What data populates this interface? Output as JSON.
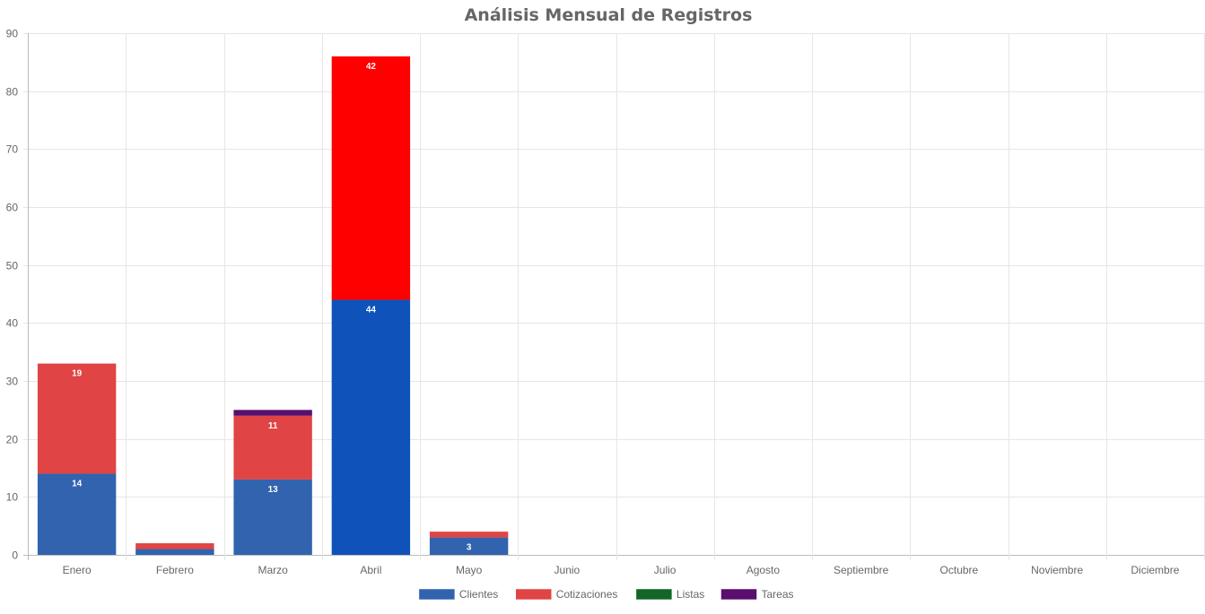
{
  "chart_data": {
    "type": "bar",
    "stacked": true,
    "title": "Análisis Mensual de Registros",
    "xlabel": "",
    "ylabel": "",
    "ylim": [
      0,
      90
    ],
    "yticks": [
      0,
      10,
      20,
      30,
      40,
      50,
      60,
      70,
      80,
      90
    ],
    "grid": true,
    "legend_position": "bottom",
    "categories": [
      "Enero",
      "Febrero",
      "Marzo",
      "Abril",
      "Mayo",
      "Junio",
      "Julio",
      "Agosto",
      "Septiembre",
      "Octubre",
      "Noviembre",
      "Diciembre"
    ],
    "series": [
      {
        "name": "Clientes",
        "color": "#3163af",
        "values": [
          14,
          1,
          13,
          44,
          3,
          0,
          0,
          0,
          0,
          0,
          0,
          0
        ],
        "point_colors": {
          "3": "#0f52b9"
        }
      },
      {
        "name": "Cotizaciones",
        "color": "#e04444",
        "values": [
          19,
          1,
          11,
          42,
          1,
          0,
          0,
          0,
          0,
          0,
          0,
          0
        ],
        "point_colors": {
          "3": "#ff0000"
        }
      },
      {
        "name": "Listas",
        "color": "#136528",
        "values": [
          0,
          0,
          0,
          0,
          0,
          0,
          0,
          0,
          0,
          0,
          0,
          0
        ]
      },
      {
        "name": "Tareas",
        "color": "#5a0e6d",
        "values": [
          0,
          0,
          1,
          0,
          0,
          0,
          0,
          0,
          0,
          0,
          0,
          0
        ]
      }
    ]
  }
}
